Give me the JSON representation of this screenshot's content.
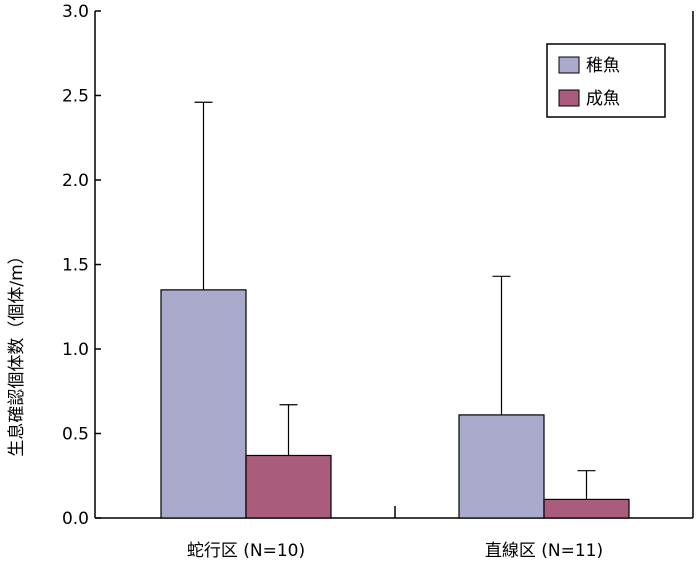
{
  "chart_data": {
    "type": "bar",
    "title": "",
    "xlabel": "",
    "ylabel": "生息確認個体数（個体/m）",
    "ylim": [
      0,
      3.0
    ],
    "yticks": [
      "0.0",
      "0.5",
      "1.0",
      "1.5",
      "2.0",
      "2.5",
      "3.0"
    ],
    "categories": [
      "蛇行区 (N=10)",
      "直線区 (N=11)"
    ],
    "series": [
      {
        "name": "稚魚",
        "color": "#aaaacc",
        "values": [
          1.35,
          0.61
        ],
        "error": [
          1.11,
          0.82
        ]
      },
      {
        "name": "成魚",
        "color": "#aa5c7c",
        "values": [
          0.37,
          0.11
        ],
        "error": [
          0.3,
          0.17
        ]
      }
    ],
    "legend": "top-right",
    "grid": false
  }
}
